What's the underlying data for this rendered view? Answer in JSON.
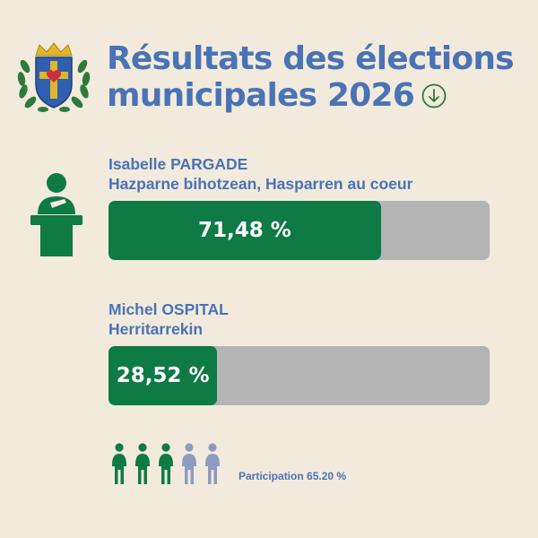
{
  "header": {
    "title_line1": "Résultats des élections",
    "title_line2": "municipales 2026"
  },
  "candidates": [
    {
      "name": "Isabelle PARGADE",
      "list": "Hazparne bihotzean, Hasparren au coeur",
      "share_percent": 71.48,
      "label": "71,48 %"
    },
    {
      "name": "Michel OSPITAL",
      "list": "Herritarrekin",
      "share_percent": 28.52,
      "label": "28,52 %"
    }
  ],
  "participation": {
    "label": "Participation 65.20 %",
    "value_percent": 65.2,
    "people_filled": 3,
    "people_total": 5
  },
  "icons": {
    "crest": "municipal-coat-of-arms-icon",
    "arrow": "arrow-down-circle-icon",
    "speaker": "speaker-at-podium-icon",
    "person": "person-icon"
  },
  "colors": {
    "background": "#f2ebdd",
    "title": "#4a73b5",
    "bar_fill": "#0e7a46",
    "bar_track": "#b4b4b4",
    "person_filled": "#0e7a46",
    "person_empty": "#8d9bc0"
  }
}
